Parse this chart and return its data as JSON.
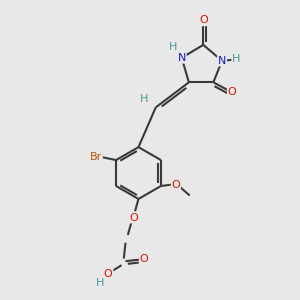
{
  "bg_color": "#e8e8e8",
  "bond_color": "#3a3a3a",
  "bond_lw": 1.5,
  "colors": {
    "O": "#dd1100",
    "N": "#1a1acc",
    "Br": "#bb5500",
    "H": "#449999",
    "C": "#3a3a3a"
  },
  "fs": 8.0,
  "figsize": [
    3.0,
    3.0
  ],
  "dpi": 100,
  "xlim": [
    0,
    10
  ],
  "ylim": [
    0,
    10
  ]
}
